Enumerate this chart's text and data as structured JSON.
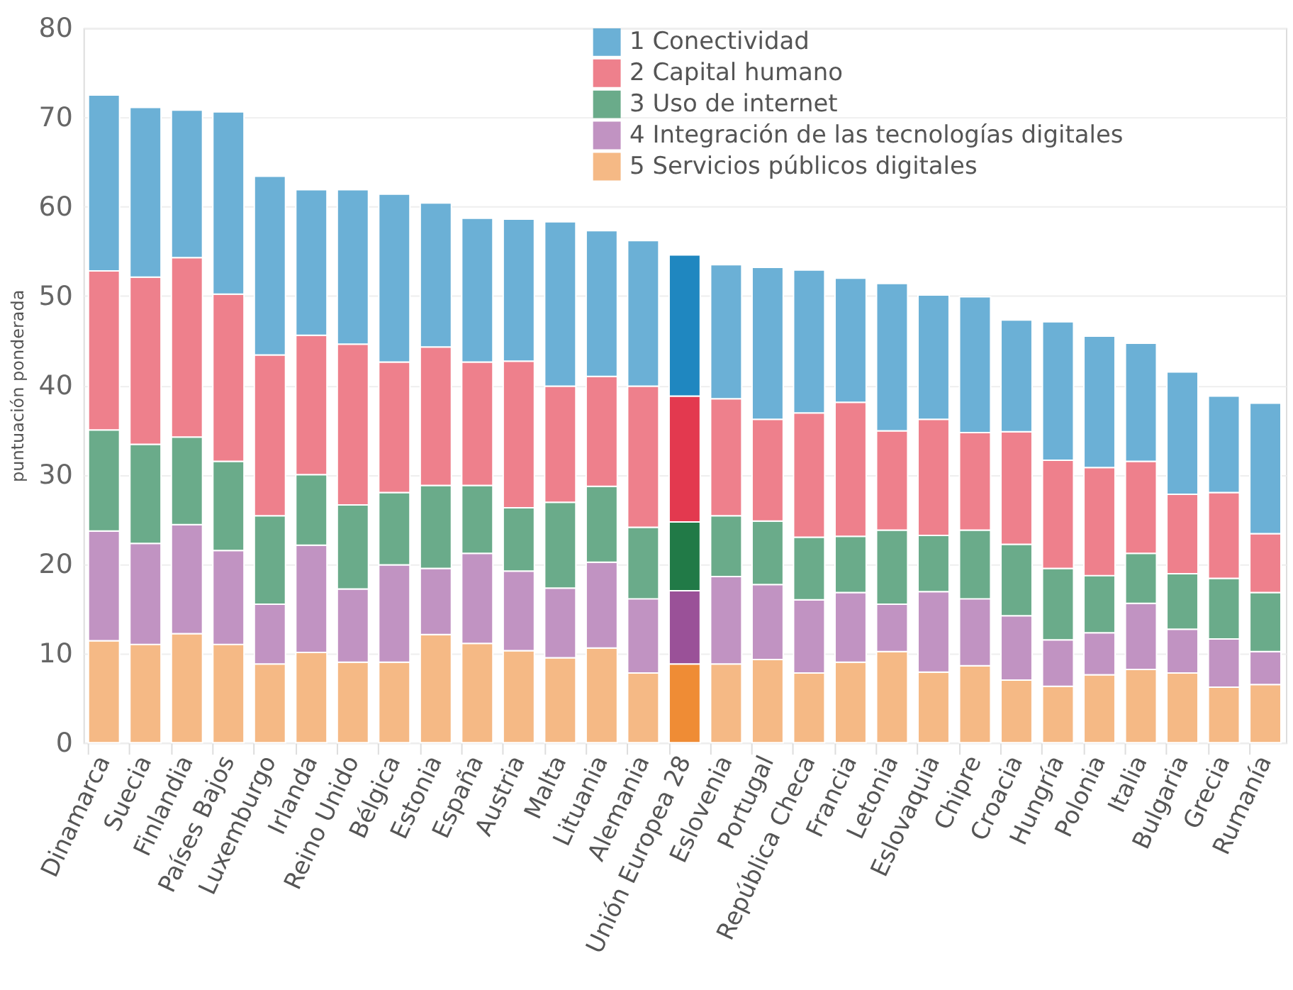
{
  "chart_data": {
    "type": "bar",
    "stacked": true,
    "ylabel": "puntuación ponderada",
    "categories": [
      "Dinamarca",
      "Suecia",
      "Finlandia",
      "Países Bajos",
      "Luxemburgo",
      "Irlanda",
      "Reino Unido",
      "Bélgica",
      "Estonia",
      "España",
      "Austria",
      "Malta",
      "Lituania",
      "Alemania",
      "Unión Europea 28",
      "Eslovenia",
      "Portugal",
      "República Checa",
      "Francia",
      "Letonia",
      "Eslovaquia",
      "Chipre",
      "Croacia",
      "Hungría",
      "Polonia",
      "Italia",
      "Bulgaria",
      "Grecia",
      "Rumanía"
    ],
    "series": [
      {
        "name": "5 Servicios públicos digitales",
        "color": "#f5b985",
        "colors": [
          "#f5b985",
          "#f5b985",
          "#f5b985",
          "#f5b985",
          "#f5b985",
          "#f5b985",
          "#f5b985",
          "#f5b985",
          "#f5b985",
          "#f5b985",
          "#f5b985",
          "#f5b985",
          "#f5b985",
          "#f5b985",
          "#ef8c35",
          "#f5b985",
          "#f5b985",
          "#f5b985",
          "#f5b985",
          "#f5b985",
          "#f5b985",
          "#f5b985",
          "#f5b985",
          "#f5b985",
          "#f5b985",
          "#f5b985",
          "#f5b985",
          "#f5b985",
          "#f5b985"
        ],
        "values": [
          11.4,
          11.0,
          12.2,
          11.0,
          8.8,
          10.1,
          9.0,
          9.0,
          12.1,
          11.1,
          10.3,
          9.5,
          10.6,
          7.8,
          8.8,
          8.8,
          9.3,
          7.8,
          9.0,
          10.2,
          7.9,
          8.6,
          7.0,
          6.3,
          7.6,
          8.2,
          7.8,
          6.2,
          6.5
        ]
      },
      {
        "name": "4 Integración de las tecnologías digitales",
        "color": "#c193c2",
        "colors": [
          "#c193c2",
          "#c193c2",
          "#c193c2",
          "#c193c2",
          "#c193c2",
          "#c193c2",
          "#c193c2",
          "#c193c2",
          "#c193c2",
          "#c193c2",
          "#c193c2",
          "#c193c2",
          "#c193c2",
          "#c193c2",
          "#9a5198",
          "#c193c2",
          "#c193c2",
          "#c193c2",
          "#c193c2",
          "#c193c2",
          "#c193c2",
          "#c193c2",
          "#c193c2",
          "#c193c2",
          "#c193c2",
          "#c193c2",
          "#c193c2",
          "#c193c2",
          "#c193c2"
        ],
        "values": [
          12.3,
          11.3,
          12.2,
          10.5,
          6.7,
          12.0,
          8.2,
          10.9,
          7.4,
          10.1,
          8.9,
          7.8,
          9.6,
          8.3,
          8.2,
          9.8,
          8.4,
          8.2,
          7.8,
          5.3,
          9.0,
          7.5,
          7.2,
          5.2,
          4.7,
          7.4,
          4.9,
          5.4,
          3.7
        ]
      },
      {
        "name": "3 Uso de internet",
        "color": "#6aab8a",
        "colors": [
          "#6aab8a",
          "#6aab8a",
          "#6aab8a",
          "#6aab8a",
          "#6aab8a",
          "#6aab8a",
          "#6aab8a",
          "#6aab8a",
          "#6aab8a",
          "#6aab8a",
          "#6aab8a",
          "#6aab8a",
          "#6aab8a",
          "#6aab8a",
          "#217a47",
          "#6aab8a",
          "#6aab8a",
          "#6aab8a",
          "#6aab8a",
          "#6aab8a",
          "#6aab8a",
          "#6aab8a",
          "#6aab8a",
          "#6aab8a",
          "#6aab8a",
          "#6aab8a",
          "#6aab8a",
          "#6aab8a",
          "#6aab8a"
        ],
        "values": [
          11.3,
          11.1,
          9.8,
          10.0,
          9.9,
          7.9,
          9.4,
          8.1,
          9.3,
          7.6,
          7.1,
          9.6,
          8.5,
          8.0,
          7.7,
          6.8,
          7.1,
          7.0,
          6.3,
          8.3,
          6.3,
          7.7,
          8.0,
          8.0,
          6.4,
          5.6,
          6.2,
          6.8,
          6.6
        ]
      },
      {
        "name": "2 Capital humano",
        "color": "#ee808c",
        "colors": [
          "#ee808c",
          "#ee808c",
          "#ee808c",
          "#ee808c",
          "#ee808c",
          "#ee808c",
          "#ee808c",
          "#ee808c",
          "#ee808c",
          "#ee808c",
          "#ee808c",
          "#ee808c",
          "#ee808c",
          "#ee808c",
          "#e3394f",
          "#ee808c",
          "#ee808c",
          "#ee808c",
          "#ee808c",
          "#ee808c",
          "#ee808c",
          "#ee808c",
          "#ee808c",
          "#ee808c",
          "#ee808c",
          "#ee808c",
          "#ee808c",
          "#ee808c",
          "#ee808c"
        ],
        "values": [
          17.8,
          18.7,
          20.1,
          18.7,
          18.0,
          15.6,
          18.0,
          14.6,
          15.5,
          13.8,
          16.4,
          13.0,
          12.3,
          15.8,
          14.1,
          13.1,
          11.4,
          13.9,
          15.0,
          11.1,
          13.0,
          10.9,
          12.6,
          12.1,
          12.1,
          10.3,
          8.9,
          9.6,
          6.6
        ]
      },
      {
        "name": "1 Conectividad",
        "color": "#6bb0d6",
        "colors": [
          "#6bb0d6",
          "#6bb0d6",
          "#6bb0d6",
          "#6bb0d6",
          "#6bb0d6",
          "#6bb0d6",
          "#6bb0d6",
          "#6bb0d6",
          "#6bb0d6",
          "#6bb0d6",
          "#6bb0d6",
          "#6bb0d6",
          "#6bb0d6",
          "#6bb0d6",
          "#1f87c0",
          "#6bb0d6",
          "#6bb0d6",
          "#6bb0d6",
          "#6bb0d6",
          "#6bb0d6",
          "#6bb0d6",
          "#6bb0d6",
          "#6bb0d6",
          "#6bb0d6",
          "#6bb0d6",
          "#6bb0d6",
          "#6bb0d6",
          "#6bb0d6",
          "#6bb0d6"
        ],
        "values": [
          19.7,
          19.0,
          16.5,
          20.4,
          20.0,
          16.3,
          17.3,
          18.8,
          16.1,
          16.1,
          15.9,
          18.4,
          16.3,
          16.3,
          15.8,
          15.0,
          17.0,
          16.0,
          13.9,
          16.5,
          13.9,
          15.2,
          12.5,
          15.5,
          14.7,
          13.2,
          13.7,
          10.8,
          14.6
        ]
      }
    ],
    "ylim": [
      0,
      80
    ],
    "yticks": [
      0,
      10,
      20,
      30,
      40,
      50,
      60,
      70,
      80
    ],
    "grid": "y",
    "legend": "top right"
  }
}
